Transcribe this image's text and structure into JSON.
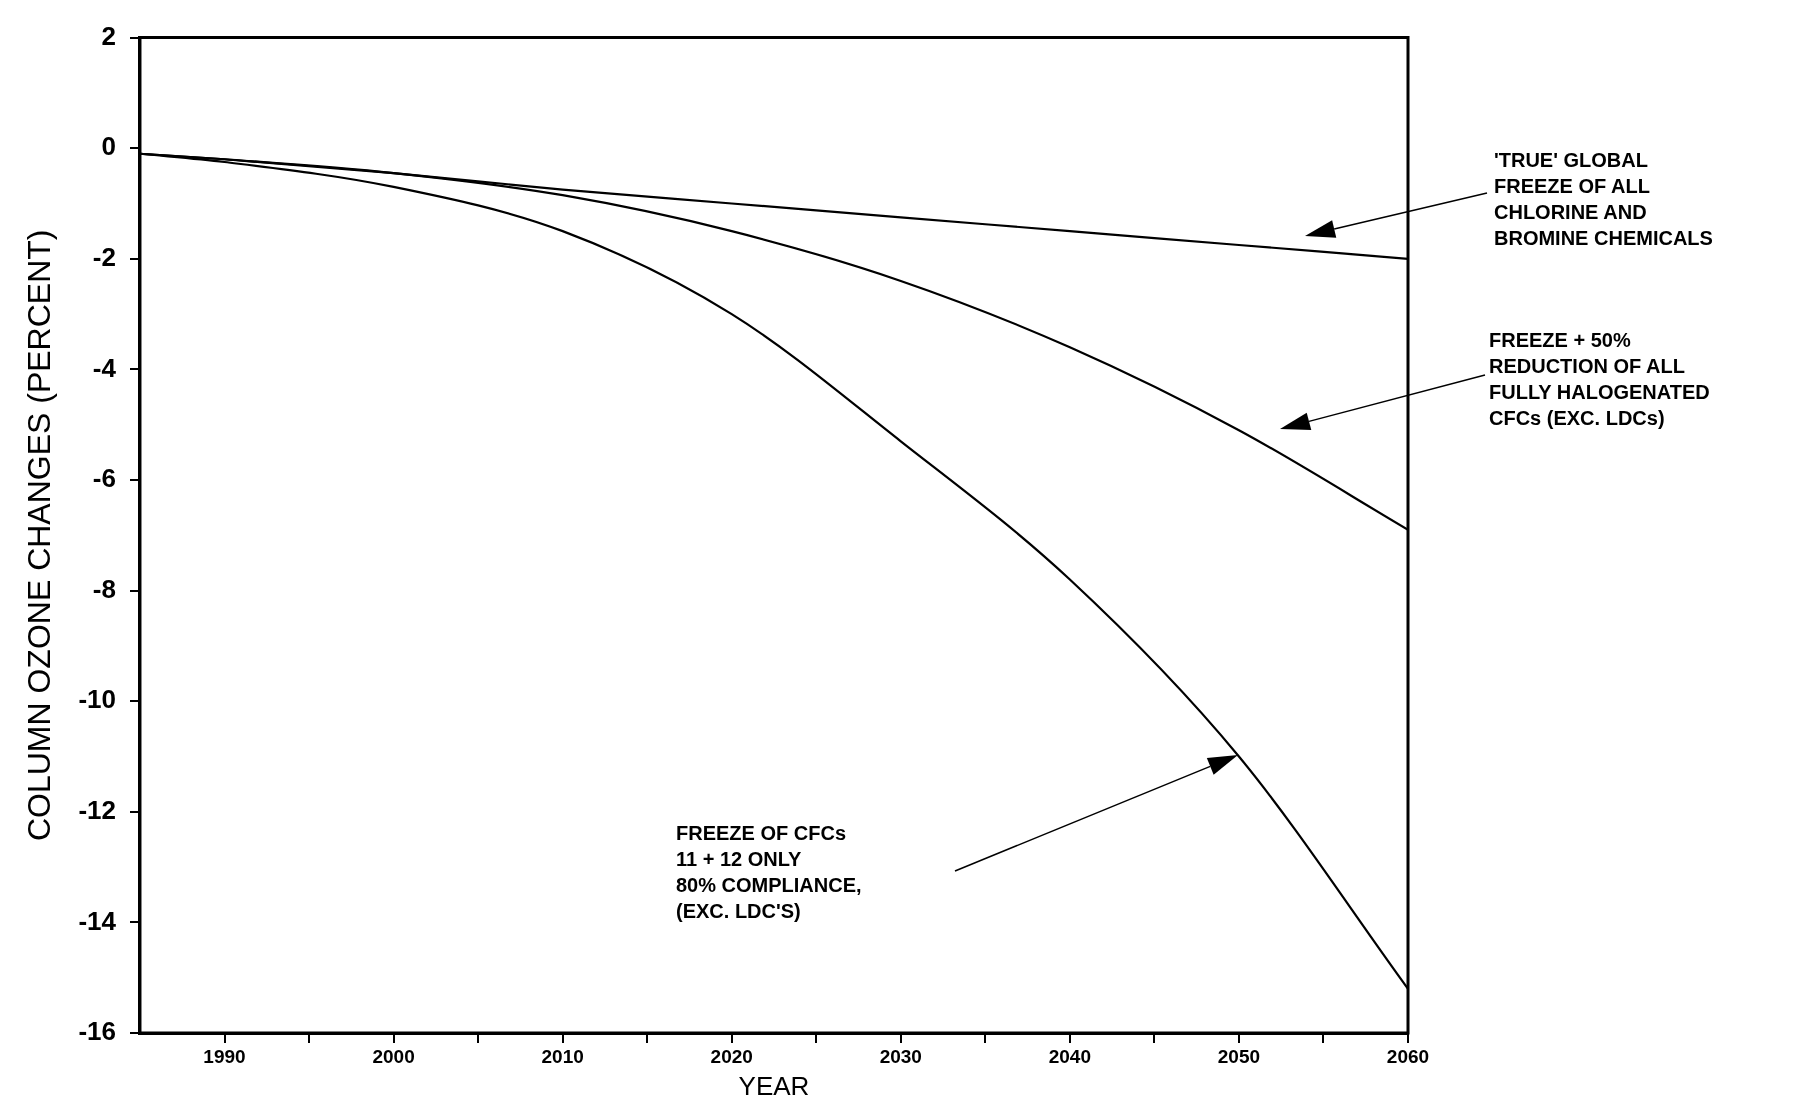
{
  "chart_data": {
    "type": "line",
    "xlabel": "YEAR",
    "ylabel": "COLUMN OZONE CHANGES (PERCENT)",
    "x": [
      1985,
      1990,
      2000,
      2010,
      2020,
      2030,
      2040,
      2050,
      2060
    ],
    "series": [
      {
        "color": "#000000",
        "values": [
          -0.1,
          -0.2,
          -0.45,
          -0.75,
          -1.0,
          -1.25,
          -1.5,
          -1.75,
          -2.0
        ]
      },
      {
        "color": "#000000",
        "values": [
          -0.1,
          -0.2,
          -0.45,
          -0.85,
          -1.5,
          -2.4,
          -3.6,
          -5.1,
          -6.9
        ]
      },
      {
        "color": "#000000",
        "values": [
          -0.1,
          -0.25,
          -0.7,
          -1.5,
          -3.0,
          -5.3,
          -7.8,
          -11.0,
          -15.2
        ]
      }
    ],
    "xlim": [
      1985,
      2060
    ],
    "xticks": [
      1990,
      {
        "value": 1995,
        "label": null
      },
      2000,
      {
        "value": 2005,
        "label": null
      },
      2010,
      {
        "value": 2015,
        "label": null
      },
      2020,
      {
        "value": 2025,
        "label": null
      },
      2030,
      {
        "value": 2035,
        "label": null
      },
      2040,
      {
        "value": 2045,
        "label": null
      },
      2050,
      {
        "value": 2055,
        "label": null
      },
      2060
    ],
    "ylim": [
      -16,
      2
    ],
    "yticks": [
      -16,
      -14,
      -12,
      -10,
      -8,
      -6,
      -4,
      -2,
      0,
      2
    ],
    "grid": false,
    "legend": false,
    "marker": "none",
    "line_style": "solid",
    "annotations": [
      "'TRUE' GLOBAL\nFREEZE OF ALL\nCHLORINE AND\nBROMINE CHEMICALS",
      "FREEZE + 50%\nREDUCTION OF ALL\nFULLY HALOGENATED\nCFCs (EXC. LDCs)",
      "FREEZE OF CFCs\n11 + 12 ONLY\n80% COMPLIANCE,\n(EXC. LDC'S)"
    ]
  }
}
